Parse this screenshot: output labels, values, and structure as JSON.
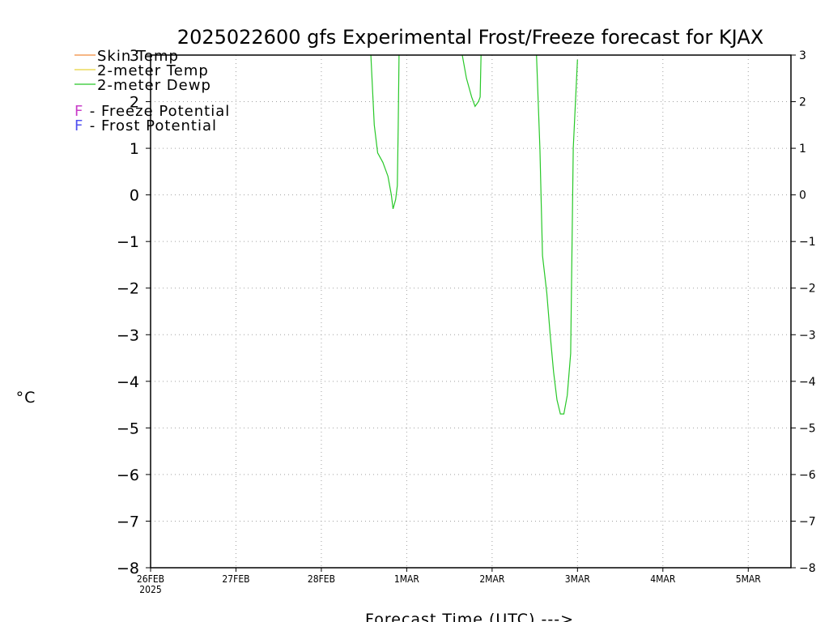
{
  "title": "2025022600 gfs Experimental Frost/Freeze forecast for KJAX",
  "xlabel": "Forecast Time (UTC) --->",
  "ylabel": "°C",
  "legend": {
    "lines": [
      {
        "label": "Skin Temp",
        "color": "#f08c3c"
      },
      {
        "label": "2-meter Temp",
        "color": "#e6d23c"
      },
      {
        "label": "2-meter Dewp",
        "color": "#28c828"
      }
    ],
    "markers": [
      {
        "symbol": "F",
        "label": " - Freeze Potential",
        "color": "#c83cc8"
      },
      {
        "symbol": "F",
        "label": " - Frost Potential",
        "color": "#5050f0"
      }
    ]
  },
  "chart_data": {
    "type": "line",
    "title": "2025022600 gfs Experimental Frost/Freeze forecast for KJAX",
    "xlabel": "Forecast Time (UTC) --->",
    "ylabel": "°C",
    "ylim": [
      -8,
      3
    ],
    "xlim_days": [
      0,
      7.5
    ],
    "grid": true,
    "legend_position": "top-left",
    "y_ticks": [
      "3",
      "2",
      "1",
      "0",
      "−1",
      "−2",
      "−3",
      "−4",
      "−5",
      "−6",
      "−7",
      "−8"
    ],
    "y_tick_values": [
      3,
      2,
      1,
      0,
      -1,
      -2,
      -3,
      -4,
      -5,
      -6,
      -7,
      -8
    ],
    "x_ticks": [
      {
        "label": "26FEB",
        "sub": "2025",
        "day": 0
      },
      {
        "label": "27FEB",
        "sub": "",
        "day": 1
      },
      {
        "label": "28FEB",
        "sub": "",
        "day": 2
      },
      {
        "label": "1MAR",
        "sub": "",
        "day": 3
      },
      {
        "label": "2MAR",
        "sub": "",
        "day": 4
      },
      {
        "label": "3MAR",
        "sub": "",
        "day": 5
      },
      {
        "label": "4MAR",
        "sub": "",
        "day": 6
      },
      {
        "label": "5MAR",
        "sub": "",
        "day": 7
      }
    ],
    "series": [
      {
        "name": "2-meter Dewp",
        "color": "#28c828",
        "segments": [
          [
            [
              2.58,
              3.0
            ],
            [
              2.62,
              1.5
            ],
            [
              2.66,
              0.9
            ],
            [
              2.72,
              0.7
            ],
            [
              2.78,
              0.4
            ],
            [
              2.82,
              0.0
            ],
            [
              2.84,
              -0.3
            ],
            [
              2.87,
              -0.1
            ],
            [
              2.89,
              0.2
            ],
            [
              2.9,
              1.5
            ],
            [
              2.91,
              3.0
            ]
          ],
          [
            [
              3.65,
              3.0
            ],
            [
              3.7,
              2.5
            ],
            [
              3.76,
              2.1
            ],
            [
              3.8,
              1.9
            ],
            [
              3.84,
              2.0
            ],
            [
              3.86,
              2.1
            ],
            [
              3.87,
              3.0
            ]
          ],
          [
            [
              4.52,
              3.0
            ],
            [
              4.56,
              1.0
            ],
            [
              4.59,
              -1.3
            ],
            [
              4.64,
              -2.1
            ],
            [
              4.68,
              -3.0
            ],
            [
              4.72,
              -3.8
            ],
            [
              4.76,
              -4.4
            ],
            [
              4.8,
              -4.7
            ],
            [
              4.84,
              -4.7
            ],
            [
              4.88,
              -4.3
            ],
            [
              4.92,
              -3.4
            ],
            [
              4.95,
              1.0
            ],
            [
              5.0,
              2.9
            ]
          ]
        ]
      }
    ]
  }
}
